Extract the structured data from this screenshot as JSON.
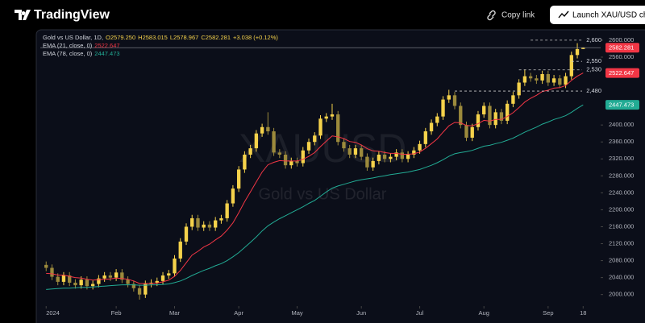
{
  "header": {
    "logo": "TradingView",
    "copy_link": "Copy link",
    "launch": "Launch XAU/USD ch"
  },
  "chart_data": {
    "type": "candlestick",
    "legend_title": "Gold vs US Dollar, 1D,",
    "ohlc_labels": [
      "O2579.250",
      "H2583.015",
      "L2578.967",
      "C2582.281"
    ],
    "change": "+3.038 (+0.12%)",
    "watermark": "XAUUSD",
    "watermark_sub": "Gold vs US Dollar",
    "up_color": "#f5d24b",
    "down_color": "#9c8a3c",
    "candles": {
      "open": [
        2070,
        2063,
        2042,
        2030,
        2045,
        2028,
        2022,
        2035,
        2020,
        2025,
        2038,
        2045,
        2040,
        2052,
        2035,
        2025,
        2015,
        2000,
        2025,
        2028,
        2032,
        2045,
        2050,
        2085,
        2125,
        2160,
        2180,
        2158,
        2165,
        2158,
        2175,
        2180,
        2215,
        2250,
        2295,
        2330,
        2345,
        2380,
        2395,
        2385,
        2335,
        2330,
        2305,
        2315,
        2310,
        2340,
        2360,
        2375,
        2415,
        2420,
        2425,
        2360,
        2345,
        2330,
        2345,
        2325,
        2300,
        2315,
        2330,
        2320,
        2325,
        2335,
        2320,
        2330,
        2340,
        2355,
        2385,
        2405,
        2420,
        2460,
        2470,
        2445,
        2400,
        2370,
        2395,
        2425,
        2445,
        2400,
        2430,
        2410,
        2450,
        2470,
        2500,
        2515,
        2510,
        2505,
        2520,
        2500,
        2510,
        2495,
        2515,
        2565,
        2579.25
      ],
      "high": [
        2078,
        2071,
        2050,
        2053,
        2053,
        2036,
        2043,
        2043,
        2033,
        2046,
        2053,
        2053,
        2060,
        2060,
        2043,
        2033,
        2023,
        2033,
        2036,
        2040,
        2053,
        2058,
        2093,
        2133,
        2168,
        2188,
        2188,
        2173,
        2173,
        2183,
        2188,
        2223,
        2258,
        2303,
        2338,
        2353,
        2388,
        2403,
        2430,
        2393,
        2343,
        2338,
        2323,
        2323,
        2348,
        2368,
        2383,
        2423,
        2428,
        2450,
        2433,
        2368,
        2353,
        2353,
        2353,
        2333,
        2323,
        2338,
        2338,
        2333,
        2343,
        2343,
        2338,
        2348,
        2363,
        2393,
        2413,
        2428,
        2468,
        2483,
        2478,
        2453,
        2408,
        2403,
        2433,
        2453,
        2453,
        2438,
        2438,
        2458,
        2478,
        2508,
        2531,
        2523,
        2518,
        2528,
        2528,
        2518,
        2518,
        2523,
        2573,
        2593,
        2583.015
      ],
      "low": [
        2055,
        2034,
        2022,
        2022,
        2020,
        2014,
        2014,
        2012,
        2012,
        2017,
        2030,
        2032,
        2032,
        2027,
        2017,
        2007,
        1988,
        1992,
        2017,
        2020,
        2024,
        2037,
        2042,
        2077,
        2117,
        2152,
        2150,
        2150,
        2150,
        2150,
        2167,
        2172,
        2207,
        2242,
        2287,
        2322,
        2337,
        2372,
        2377,
        2327,
        2322,
        2297,
        2297,
        2302,
        2302,
        2332,
        2352,
        2367,
        2407,
        2412,
        2352,
        2337,
        2322,
        2322,
        2317,
        2292,
        2292,
        2307,
        2312,
        2312,
        2317,
        2312,
        2312,
        2322,
        2332,
        2347,
        2377,
        2397,
        2412,
        2452,
        2437,
        2392,
        2362,
        2362,
        2387,
        2417,
        2392,
        2392,
        2402,
        2402,
        2442,
        2462,
        2492,
        2502,
        2497,
        2497,
        2492,
        2492,
        2487,
        2487,
        2507,
        2557,
        2578.967
      ],
      "close": [
        2063,
        2042,
        2030,
        2045,
        2028,
        2022,
        2035,
        2020,
        2025,
        2038,
        2045,
        2040,
        2052,
        2035,
        2025,
        2015,
        2000,
        2025,
        2028,
        2032,
        2045,
        2050,
        2085,
        2125,
        2160,
        2180,
        2158,
        2165,
        2158,
        2175,
        2180,
        2215,
        2250,
        2295,
        2330,
        2345,
        2380,
        2395,
        2385,
        2335,
        2330,
        2305,
        2315,
        2310,
        2340,
        2360,
        2375,
        2415,
        2420,
        2425,
        2360,
        2345,
        2330,
        2345,
        2325,
        2300,
        2315,
        2330,
        2320,
        2325,
        2335,
        2320,
        2330,
        2340,
        2355,
        2385,
        2405,
        2420,
        2460,
        2470,
        2445,
        2400,
        2370,
        2395,
        2425,
        2445,
        2400,
        2430,
        2410,
        2450,
        2470,
        2500,
        2515,
        2510,
        2505,
        2520,
        2500,
        2510,
        2495,
        2515,
        2565,
        2579,
        2582.281
      ]
    },
    "series": [
      {
        "name": "EMA (21, close, 0)",
        "color": "#f23645",
        "values": [
          2050,
          2049,
          2046,
          2046,
          2043,
          2040,
          2039,
          2036,
          2034,
          2035,
          2036,
          2037,
          2039,
          2038,
          2036,
          2032,
          2026,
          2026,
          2026,
          2027,
          2030,
          2034,
          2043,
          2057,
          2075,
          2093,
          2102,
          2112,
          2119,
          2129,
          2138,
          2152,
          2169,
          2193,
          2219,
          2242,
          2266,
          2289,
          2306,
          2312,
          2316,
          2315,
          2315,
          2315,
          2319,
          2326,
          2335,
          2349,
          2362,
          2374,
          2372,
          2368,
          2361,
          2359,
          2353,
          2344,
          2339,
          2338,
          2335,
          2333,
          2333,
          2331,
          2331,
          2332,
          2336,
          2345,
          2356,
          2367,
          2383,
          2398,
          2406,
          2405,
          2399,
          2398,
          2403,
          2411,
          2409,
          2413,
          2413,
          2420,
          2429,
          2441,
          2454,
          2463,
          2470,
          2479,
          2482,
          2487,
          2488,
          2493,
          2505,
          2515,
          2522.647
        ]
      },
      {
        "name": "EMA (78, close, 0)",
        "color": "#22ab94",
        "values": [
          2012,
          2013,
          2014,
          2015,
          2015,
          2016,
          2017,
          2017,
          2018,
          2019,
          2020,
          2021,
          2022,
          2023,
          2023,
          2023,
          2022,
          2022,
          2023,
          2023,
          2024,
          2025,
          2028,
          2032,
          2038,
          2045,
          2051,
          2057,
          2062,
          2068,
          2073,
          2080,
          2089,
          2099,
          2111,
          2123,
          2136,
          2150,
          2162,
          2171,
          2179,
          2186,
          2193,
          2200,
          2207,
          2215,
          2222,
          2232,
          2242,
          2251,
          2256,
          2260,
          2264,
          2268,
          2271,
          2273,
          2275,
          2278,
          2280,
          2283,
          2285,
          2287,
          2289,
          2292,
          2295,
          2300,
          2305,
          2311,
          2318,
          2326,
          2332,
          2335,
          2337,
          2340,
          2345,
          2350,
          2352,
          2356,
          2359,
          2364,
          2369,
          2376,
          2383,
          2389,
          2395,
          2402,
          2407,
          2413,
          2417,
          2422,
          2430,
          2439,
          2447.473
        ]
      }
    ],
    "xlim": [
      -1,
      95
    ],
    "xticks": [
      {
        "value": 0,
        "label": "2024"
      },
      {
        "value": 12,
        "label": "Feb"
      },
      {
        "value": 22,
        "label": "Mar"
      },
      {
        "value": 33,
        "label": "Apr"
      },
      {
        "value": 43,
        "label": "May"
      },
      {
        "value": 54,
        "label": "Jun"
      },
      {
        "value": 64,
        "label": "Jul"
      },
      {
        "value": 75,
        "label": "Aug"
      },
      {
        "value": 86,
        "label": "Sep"
      },
      {
        "value": 92,
        "label": "18"
      }
    ],
    "ylim": [
      1950,
      2615
    ],
    "yticks": [
      {
        "value": 2000,
        "label": "2000.000"
      },
      {
        "value": 2040,
        "label": "2040.000"
      },
      {
        "value": 2080,
        "label": "2080.000"
      },
      {
        "value": 2120,
        "label": "2120.000"
      },
      {
        "value": 2160,
        "label": "2160.000"
      },
      {
        "value": 2200,
        "label": "2200.000"
      },
      {
        "value": 2240,
        "label": "2240.000"
      },
      {
        "value": 2280,
        "label": "2280.000"
      },
      {
        "value": 2320,
        "label": "2320.000"
      },
      {
        "value": 2360,
        "label": "2360.000"
      },
      {
        "value": 2400,
        "label": "2400.000"
      },
      {
        "value": 2560,
        "label": "2560.000"
      },
      {
        "value": 2600,
        "label": "2600.000"
      }
    ],
    "levels": [
      {
        "value": 2600,
        "label": "2,600"
      },
      {
        "value": 2550,
        "label": "2,550"
      },
      {
        "value": 2530,
        "label": "2,530"
      },
      {
        "value": 2480,
        "label": "2,480"
      }
    ],
    "grid": false
  }
}
